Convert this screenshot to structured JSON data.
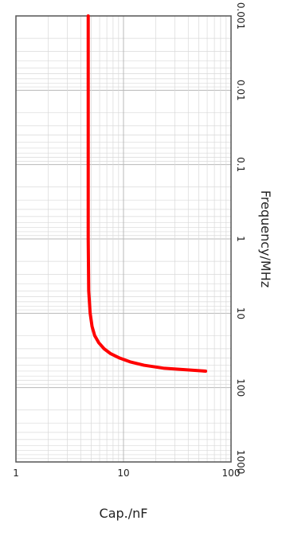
{
  "chart_data": {
    "type": "line",
    "title": "",
    "xlabel": "Frequency/MHz",
    "ylabel": "Cap./nF",
    "x_scale": "log",
    "y_scale": "log",
    "xlim": [
      0.001,
      1000
    ],
    "ylim": [
      1,
      100
    ],
    "x_ticks": [
      "0.001",
      "0.01",
      "0.1",
      "1",
      "10",
      "100",
      "1000"
    ],
    "y_ticks": [
      "1",
      "10",
      "100"
    ],
    "grid": true,
    "rotation": "rotated 90 degrees clockwise",
    "series": [
      {
        "color": "#ff0000",
        "x": [
          0.001,
          0.01,
          0.1,
          1,
          5,
          10,
          15,
          20,
          25,
          30,
          35,
          40,
          45,
          50,
          55,
          60
        ],
        "y": [
          4.7,
          4.7,
          4.7,
          4.7,
          4.75,
          4.9,
          5.1,
          5.4,
          5.9,
          6.6,
          7.6,
          9.2,
          11.5,
          15.5,
          24,
          58
        ]
      }
    ]
  }
}
